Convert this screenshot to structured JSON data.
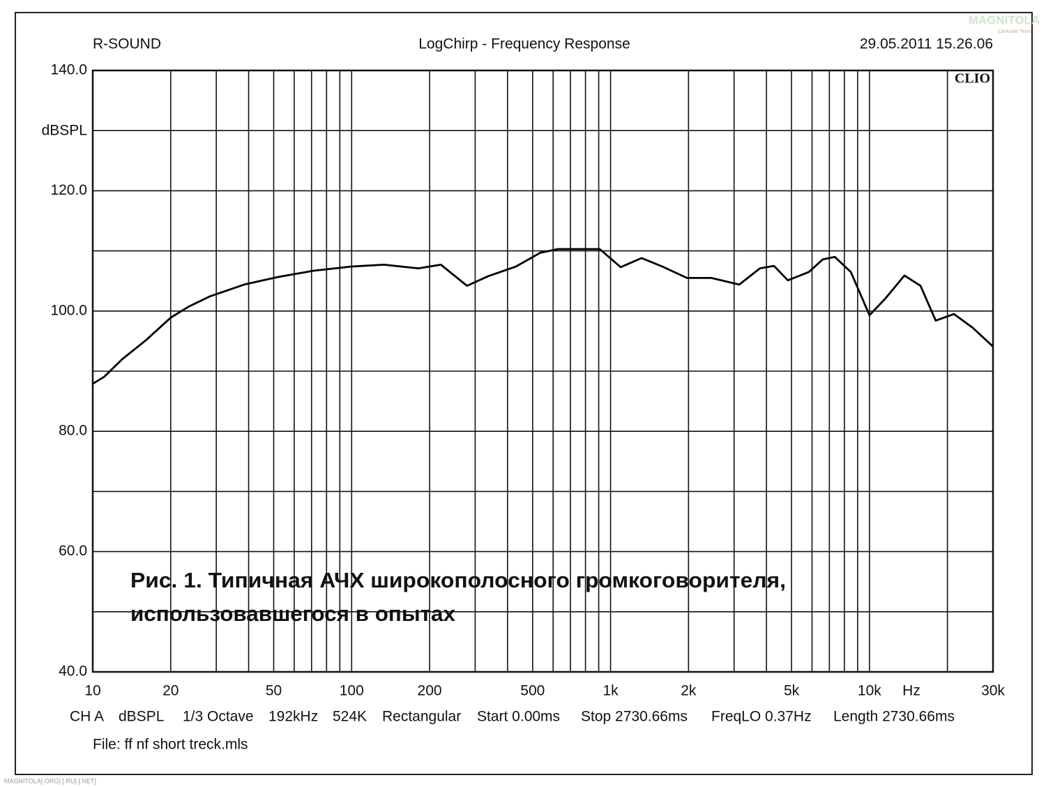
{
  "chart_data": {
    "type": "line",
    "header_left": "R-SOUND",
    "title": "LogChirp - Frequency Response",
    "header_right": "29.05.2011 15.26.06",
    "brand": "CLIO",
    "y_label": "dBSPL",
    "x_unit": "Hz",
    "log_x": true,
    "grid": true,
    "color": "#000000",
    "x": [
      10,
      11.1,
      13,
      16.1,
      20,
      23.4,
      28.2,
      38.4,
      52.4,
      71.4,
      100,
      133,
      181,
      221,
      279,
      337,
      431,
      536,
      626,
      908,
      1094,
      1318,
      1585,
      1972,
      2449,
      3140,
      3776,
      4276,
      4842,
      5834,
      6607,
      7345,
      8472,
      10000,
      11530,
      13650,
      15740,
      18030,
      21200,
      25060,
      30000
    ],
    "values": [
      87.9,
      89.1,
      92.0,
      95.2,
      98.9,
      100.7,
      102.4,
      104.4,
      105.7,
      106.7,
      107.4,
      107.7,
      107.1,
      107.7,
      104.2,
      105.8,
      107.4,
      109.7,
      110.3,
      110.3,
      107.3,
      108.8,
      107.4,
      105.5,
      105.5,
      104.4,
      107.1,
      107.5,
      105.1,
      106.5,
      108.6,
      109.0,
      106.5,
      99.3,
      102.1,
      105.9,
      104.2,
      98.4,
      99.5,
      97.2,
      94.1
    ],
    "xlim": [
      10,
      30000
    ],
    "ylim": [
      40,
      140
    ],
    "xticks": [
      10,
      20,
      50,
      100,
      200,
      500,
      {
        "value": 1000,
        "label": "1k"
      },
      {
        "value": 2000,
        "label": "2k"
      },
      {
        "value": 5000,
        "label": "5k"
      },
      {
        "value": 10000,
        "label": "10k"
      },
      {
        "value": 30000,
        "label": "30k"
      }
    ],
    "x_minor_ticks": [
      30,
      40,
      60,
      70,
      80,
      90,
      300,
      400,
      600,
      700,
      800,
      900,
      3000,
      4000,
      6000,
      7000,
      8000,
      9000,
      20000
    ],
    "yticks": [
      {
        "value": 40,
        "label": "40.0"
      },
      {
        "value": 60,
        "label": "60.0"
      },
      {
        "value": 80,
        "label": "80.0"
      },
      {
        "value": 100,
        "label": "100.0"
      },
      {
        "value": 120,
        "label": "120.0"
      },
      {
        "value": 140,
        "label": "140.0"
      }
    ],
    "y_minor_ticks": [
      50,
      70,
      90,
      110,
      130
    ],
    "settings": [
      "CH A",
      "dBSPL",
      "1/3 Octave",
      "192kHz",
      "524K",
      "Rectangular",
      "Start 0.00ms",
      "Stop 2730.66ms",
      "FreqLO 0.37Hz",
      "Length 2730.66ms"
    ],
    "file": "File: ff nf short treck.mls",
    "caption": [
      "Рис. 1. Типичная АЧХ широкополосного громкоговорителя,",
      "использовавшегося в опытах"
    ],
    "watermark": "MAGNITOLA[.ORG] [.RU] [.NET]",
    "logo": [
      "MAGNITOLA",
      "CarAudio Team"
    ]
  }
}
